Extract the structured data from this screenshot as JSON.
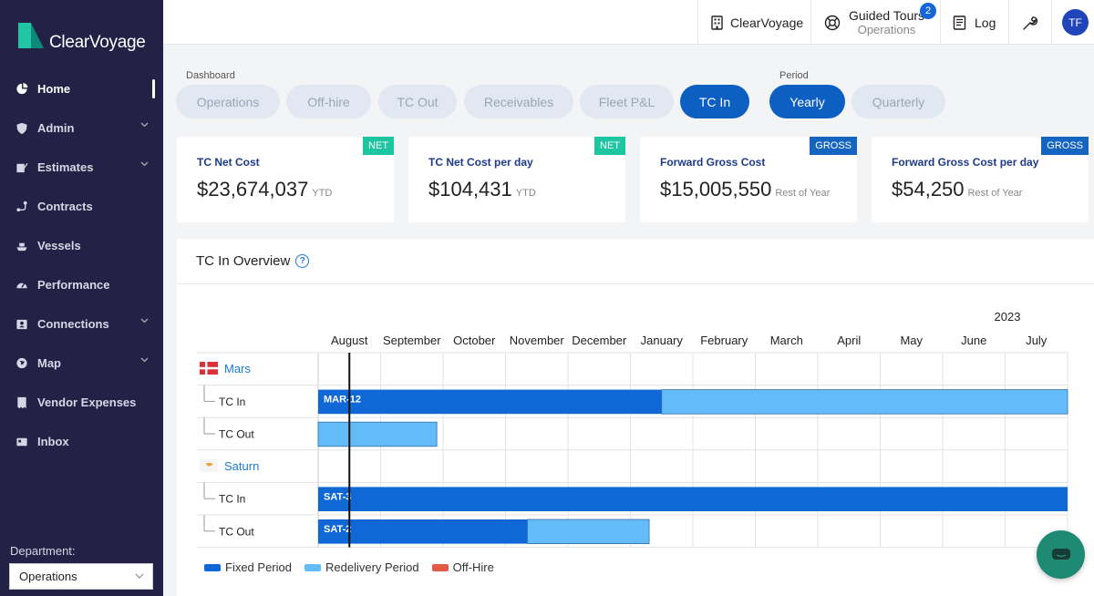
{
  "app": {
    "brand": "ClearVoyage"
  },
  "sidebar": {
    "items": [
      {
        "label": "Home",
        "icon": "pie-chart-icon",
        "active": true
      },
      {
        "label": "Admin",
        "icon": "shield-icon",
        "chevron": true
      },
      {
        "label": "Estimates",
        "icon": "edit-icon",
        "chevron": true
      },
      {
        "label": "Contracts",
        "icon": "route-icon"
      },
      {
        "label": "Vessels",
        "icon": "ship-icon"
      },
      {
        "label": "Performance",
        "icon": "gauge-icon"
      },
      {
        "label": "Connections",
        "icon": "contacts-icon",
        "chevron": true
      },
      {
        "label": "Map",
        "icon": "globe-icon",
        "chevron": true
      },
      {
        "label": "Vendor Expenses",
        "icon": "receipt-icon"
      },
      {
        "label": "Inbox",
        "icon": "inbox-icon"
      }
    ],
    "department_label": "Department:",
    "department_value": "Operations"
  },
  "topbar": {
    "company": "ClearVoyage",
    "tours_label": "Guided Tours",
    "tours_sub": "Operations",
    "tours_badge": "2",
    "log_label": "Log",
    "avatar": "TF"
  },
  "dashboard": {
    "group_label": "Dashboard",
    "tabs": [
      "Operations",
      "Off-hire",
      "TC Out",
      "Receivables",
      "Fleet P&L",
      "TC In"
    ],
    "active_tab": "TC In"
  },
  "period": {
    "group_label": "Period",
    "tabs": [
      "Yearly",
      "Quarterly"
    ],
    "active_tab": "Yearly"
  },
  "cards": [
    {
      "title": "TC Net Cost",
      "value": "$23,674,037",
      "suffix": "YTD",
      "tag": "NET"
    },
    {
      "title": "TC Net Cost per day",
      "value": "$104,431",
      "suffix": "YTD",
      "tag": "NET"
    },
    {
      "title": "Forward Gross Cost",
      "value": "$15,005,550",
      "suffix": "Rest of Year",
      "tag": "GROSS"
    },
    {
      "title": "Forward Gross Cost per day",
      "value": "$54,250",
      "suffix": "Rest of Year",
      "tag": "GROSS"
    }
  ],
  "colors": {
    "sidebar_bg": "#232146",
    "net_tag": "#1cc6a0",
    "gross_tag": "#1565c0",
    "fixed_period": "#0f68d6",
    "redelivery_period": "#63bbf7",
    "off_hire": "#e25c45",
    "chat_button": "#1f8a73"
  },
  "overview": {
    "title": "TC In Overview",
    "year_label": "2023",
    "months": [
      "August",
      "September",
      "October",
      "November",
      "December",
      "January",
      "February",
      "March",
      "April",
      "May",
      "June",
      "July"
    ],
    "vessels": [
      {
        "name": "Mars",
        "flag": "denmark-flag-icon",
        "rows": [
          {
            "label": "TC In",
            "bars": [
              {
                "type": "fixed",
                "start_month": 0,
                "end_month": 5.5,
                "label": "MAR-12"
              },
              {
                "type": "redelivery",
                "start_month": 5.5,
                "end_month": 12,
                "label": ""
              }
            ]
          },
          {
            "label": "TC Out",
            "bars": [
              {
                "type": "redelivery",
                "start_month": 0,
                "end_month": 1.9,
                "label": ""
              }
            ]
          }
        ]
      },
      {
        "name": "Saturn",
        "flag": "cyprus-flag-icon",
        "rows": [
          {
            "label": "TC In",
            "bars": [
              {
                "type": "fixed",
                "start_month": 0,
                "end_month": 12,
                "label": "SAT-3"
              }
            ]
          },
          {
            "label": "TC Out",
            "bars": [
              {
                "type": "fixed",
                "start_month": 0,
                "end_month": 3.35,
                "label": "SAT-2"
              },
              {
                "type": "redelivery",
                "start_month": 3.35,
                "end_month": 5.3,
                "label": ""
              }
            ]
          }
        ]
      }
    ],
    "today_month": 0.5,
    "legend": [
      {
        "label": "Fixed Period",
        "color": "#0f68d6"
      },
      {
        "label": "Redelivery Period",
        "color": "#63bbf7"
      },
      {
        "label": "Off-Hire",
        "color": "#e25c45"
      }
    ]
  }
}
